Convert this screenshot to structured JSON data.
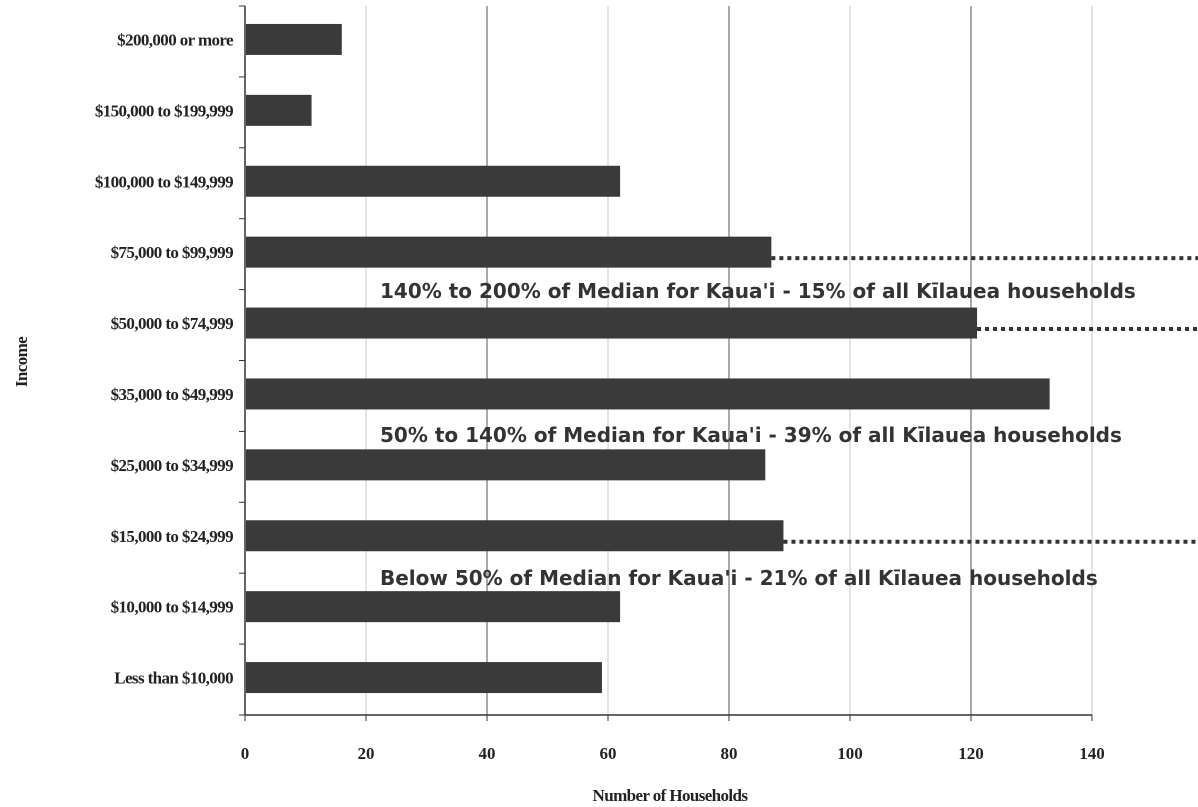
{
  "chart_data": {
    "type": "bar",
    "orientation": "horizontal",
    "categories": [
      "$200,000 or more",
      "$150,000 to $199,999",
      "$100,000 to $149,999",
      "$75,000 to $99,999",
      "$50,000 to $74,999",
      "$35,000 to $49,999",
      "$25,000 to $34,999",
      "$15,000 to $24,999",
      "$10,000 to $14,999",
      "Less than $10,000"
    ],
    "values": [
      16,
      11,
      62,
      87,
      121,
      133,
      86,
      89,
      62,
      59
    ],
    "xlabel": "Number of Households",
    "ylabel": "Income",
    "xlim": [
      0,
      140
    ],
    "xticks": [
      "0",
      "20",
      "40",
      "60",
      "80",
      "100",
      "120",
      "140"
    ],
    "grid": "vertical",
    "bar_color": "#3a3a3a",
    "annotations": [
      "140% to 200% of Median for Kaua'i  - 15% of all Kīlauea households",
      "50% to 140% of Median for Kaua'i  - 39% of all Kīlauea households",
      "Below 50% of Median for Kaua'i  - 21% of all Kīlauea households"
    ]
  }
}
